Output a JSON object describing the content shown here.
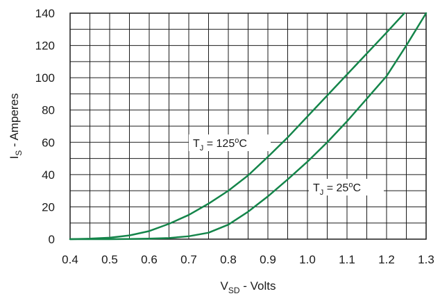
{
  "chart_data": {
    "type": "line",
    "xlabel": {
      "main": "V",
      "sub": "SD",
      "rest": " - Volts"
    },
    "ylabel": {
      "main": "I",
      "sub": "S",
      "rest": " - Amperes"
    },
    "xlim": [
      0.4,
      1.3
    ],
    "ylim": [
      0,
      140
    ],
    "x_ticks": [
      "0.4",
      "0.5",
      "0.6",
      "0.7",
      "0.8",
      "0.9",
      "1.0",
      "1.1",
      "1.2",
      "1.3"
    ],
    "y_ticks": [
      "0",
      "20",
      "40",
      "60",
      "80",
      "100",
      "120",
      "140"
    ],
    "grid": true,
    "grid_x_minor": 0.05,
    "grid_y_minor": 10,
    "series_color": "#14854a",
    "series": [
      {
        "label": {
          "pre": "T",
          "sub": "J",
          "mid": " = 125",
          "sup": "o",
          "post": "C"
        },
        "x": [
          0.4,
          0.45,
          0.5,
          0.55,
          0.6,
          0.65,
          0.7,
          0.75,
          0.8,
          0.85,
          0.9,
          0.95,
          1.0,
          1.05,
          1.1,
          1.15,
          1.2,
          1.245
        ],
        "y": [
          0,
          0.3,
          0.9,
          2.3,
          5,
          9.5,
          15,
          22,
          30,
          39.5,
          51,
          63,
          76,
          89,
          102,
          115,
          128,
          140
        ]
      },
      {
        "label": {
          "pre": "T",
          "sub": "J",
          "mid": " = 25",
          "sup": "o",
          "post": "C"
        },
        "x": [
          0.4,
          0.5,
          0.55,
          0.6,
          0.65,
          0.7,
          0.75,
          0.8,
          0.85,
          0.9,
          0.95,
          1.0,
          1.05,
          1.1,
          1.15,
          1.2,
          1.25,
          1.3
        ],
        "y": [
          0,
          0,
          0.1,
          0.3,
          0.7,
          1.8,
          4,
          9,
          17,
          26.5,
          37,
          48,
          60,
          73,
          87,
          101,
          120,
          140
        ]
      }
    ]
  }
}
